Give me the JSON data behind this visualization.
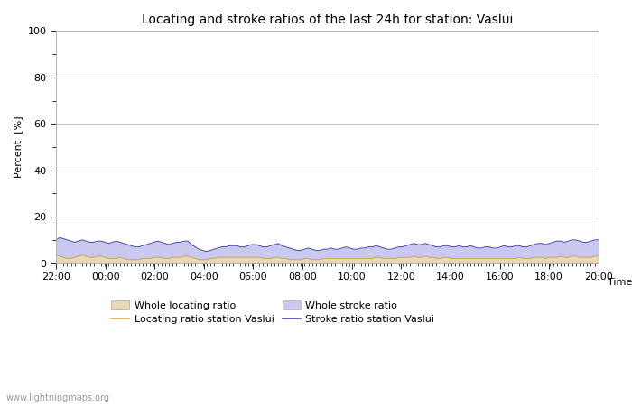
{
  "title": "Locating and stroke ratios of the last 24h for station: Vaslui",
  "xlabel": "Time",
  "ylabel": "Percent  [%]",
  "ylim": [
    0,
    100
  ],
  "yticks": [
    0,
    20,
    40,
    60,
    80,
    100
  ],
  "minor_yticks": [
    10,
    30,
    50,
    70,
    90
  ],
  "xtick_labels": [
    "22:00",
    "00:00",
    "02:00",
    "04:00",
    "06:00",
    "08:00",
    "10:00",
    "12:00",
    "14:00",
    "16:00",
    "18:00",
    "20:00"
  ],
  "background_color": "#ffffff",
  "plot_bg_color": "#ffffff",
  "grid_color": "#bbbbbb",
  "stroke_fill_color": "#c8c8f0",
  "locating_fill_color": "#e8d8b8",
  "stroke_line_color": "#4444aa",
  "locating_line_color": "#ccaa44",
  "watermark": "www.lightningmaps.org",
  "title_fontsize": 10,
  "axis_fontsize": 8,
  "tick_fontsize": 8,
  "legend_fontsize": 8,
  "stroke_whole": [
    10,
    11,
    10.5,
    10,
    9.5,
    9,
    9.5,
    10,
    9.5,
    9,
    9,
    9.5,
    9.5,
    9,
    8.5,
    9,
    9.5,
    9,
    8.5,
    8,
    7.5,
    7,
    7,
    7.5,
    8,
    8.5,
    9,
    9.5,
    9,
    8.5,
    8,
    8.5,
    9,
    9,
    9.5,
    9.5,
    8,
    7,
    6,
    5.5,
    5,
    5.5,
    6,
    6.5,
    7,
    7,
    7.5,
    7.5,
    7.5,
    7,
    7,
    7.5,
    8,
    8,
    7.5,
    7,
    7,
    7.5,
    8,
    8.5,
    7.5,
    7,
    6.5,
    6,
    5.5,
    5.5,
    6,
    6.5,
    6,
    5.5,
    5.5,
    6,
    6,
    6.5,
    6,
    6,
    6.5,
    7,
    6.5,
    6,
    6,
    6.5,
    6.5,
    7,
    7,
    7.5,
    7,
    6.5,
    6,
    6,
    6.5,
    7,
    7,
    7.5,
    8,
    8.5,
    8,
    8,
    8.5,
    8,
    7.5,
    7,
    7,
    7.5,
    7.5,
    7,
    7,
    7.5,
    7,
    7,
    7.5,
    7,
    6.5,
    6.5,
    7,
    7,
    6.5,
    6.5,
    7,
    7.5,
    7,
    7,
    7.5,
    7.5,
    7,
    7,
    7.5,
    8,
    8.5,
    8.5,
    8,
    8.5,
    9,
    9.5,
    9.5,
    9,
    9.5,
    10,
    10,
    9.5,
    9,
    9,
    9.5,
    10,
    10
  ],
  "locating_whole": [
    3.5,
    3,
    2.5,
    2,
    2,
    2.5,
    3,
    3.5,
    3,
    2.5,
    2.5,
    3,
    3,
    2.5,
    2,
    2,
    2,
    2.5,
    2,
    1.5,
    1.5,
    1.5,
    1.5,
    2,
    2,
    2,
    2.5,
    2.5,
    2.5,
    2,
    2,
    2.5,
    2.5,
    2.5,
    3,
    3,
    2.5,
    2,
    1.5,
    1.5,
    1.5,
    2,
    2,
    2.5,
    2.5,
    2.5,
    2.5,
    2.5,
    2.5,
    2.5,
    2.5,
    2.5,
    2.5,
    2.5,
    2.5,
    2,
    2,
    2,
    2.5,
    2.5,
    2,
    2,
    1.5,
    1.5,
    1.5,
    1.5,
    2,
    2,
    1.5,
    1.5,
    1.5,
    2,
    2,
    2,
    2,
    2,
    2,
    2,
    2,
    2,
    2,
    2,
    2,
    2,
    2,
    2.5,
    2.5,
    2,
    2,
    2,
    2,
    2.5,
    2.5,
    2.5,
    2.5,
    3,
    2.5,
    2.5,
    3,
    2.5,
    2.5,
    2,
    2,
    2.5,
    2.5,
    2,
    2,
    2,
    2,
    2,
    2,
    2,
    2,
    2,
    2,
    2,
    2,
    2,
    2,
    2,
    2,
    2,
    2,
    2.5,
    2,
    2,
    2,
    2.5,
    2.5,
    2.5,
    2,
    2.5,
    2.5,
    2.5,
    3,
    2.5,
    2.5,
    3,
    3,
    2.5,
    2.5,
    2.5,
    2.5,
    3,
    3
  ]
}
